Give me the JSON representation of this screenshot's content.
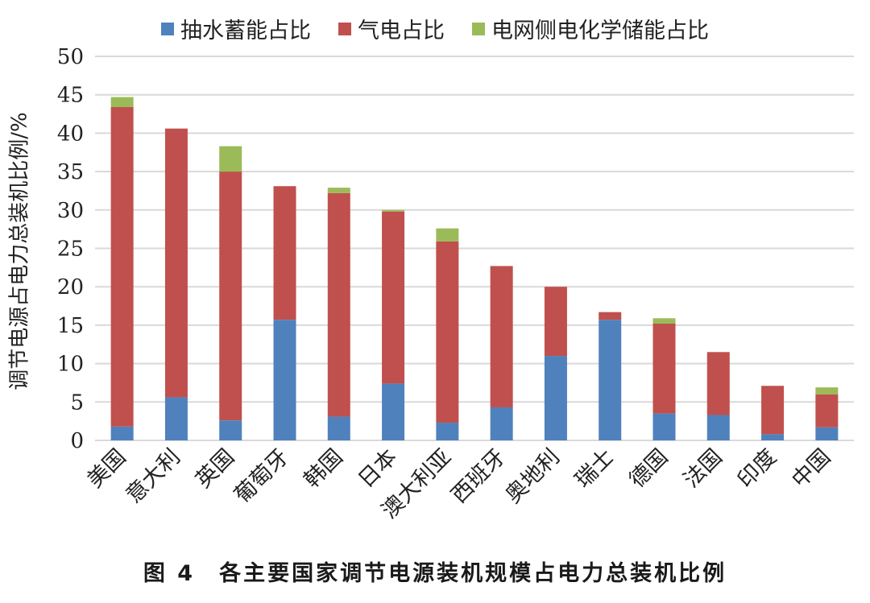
{
  "caption": "图 4　各主要国家调节电源装机规模占电力总装机比例",
  "chart_data": {
    "type": "bar",
    "stacked": true,
    "title": "",
    "xlabel": "",
    "ylabel": "调节电源占电力总装机比例/%",
    "ylim": [
      0,
      50
    ],
    "yticks": [
      0,
      5,
      10,
      15,
      20,
      25,
      30,
      35,
      40,
      45,
      50
    ],
    "grid": true,
    "legend_position": "top",
    "categories": [
      "美国",
      "意大利",
      "英国",
      "葡萄牙",
      "韩国",
      "日本",
      "澳大利亚",
      "西班牙",
      "奥地利",
      "瑞士",
      "德国",
      "法国",
      "印度",
      "中国"
    ],
    "series": [
      {
        "name": "抽水蓄能占比",
        "color": "#4f81bd",
        "values": [
          1.8,
          5.6,
          2.6,
          15.7,
          3.1,
          7.4,
          2.3,
          4.3,
          11.0,
          15.7,
          3.5,
          3.3,
          0.8,
          1.7
        ]
      },
      {
        "name": "气电占比",
        "color": "#c0504d",
        "values": [
          41.6,
          35.0,
          32.4,
          17.4,
          29.1,
          22.4,
          23.6,
          18.4,
          9.0,
          1.0,
          11.7,
          8.2,
          6.3,
          4.3
        ]
      },
      {
        "name": "电网侧电化学储能占比",
        "color": "#9bbb59",
        "values": [
          1.3,
          0.0,
          3.3,
          0.0,
          0.7,
          0.2,
          1.7,
          0.0,
          0.0,
          0.0,
          0.7,
          0.0,
          0.0,
          0.9
        ]
      }
    ]
  }
}
